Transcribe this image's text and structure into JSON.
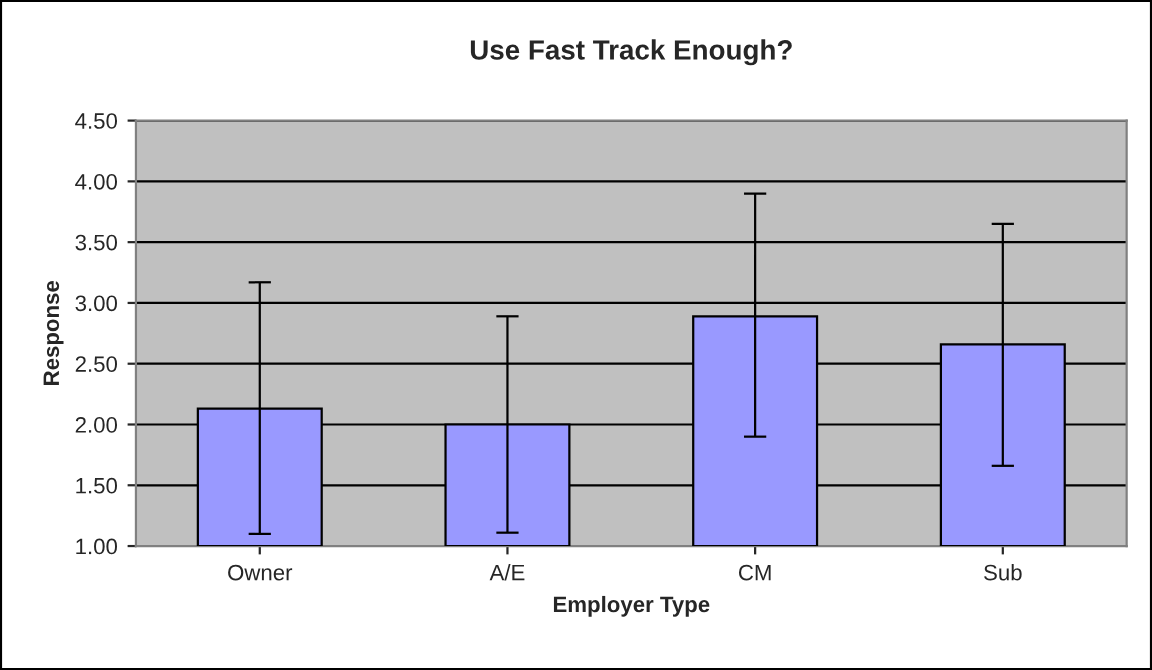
{
  "chart_data": {
    "type": "bar",
    "title": "Use Fast Track Enough?",
    "xlabel": "Employer Type",
    "ylabel": "Response",
    "categories": [
      "Owner",
      "A/E",
      "CM",
      "Sub"
    ],
    "values": [
      2.13,
      2.0,
      2.89,
      2.66
    ],
    "errors": [
      [
        1.1,
        3.17
      ],
      [
        1.11,
        2.89
      ],
      [
        1.9,
        3.9
      ],
      [
        1.66,
        3.65
      ]
    ],
    "color": "#9999ff",
    "ylim": [
      1,
      4.5
    ],
    "yticks": [
      {
        "value": 1,
        "label": "1.00"
      },
      {
        "value": 1.5,
        "label": "1.50"
      },
      {
        "value": 2,
        "label": "2.00"
      },
      {
        "value": 2.5,
        "label": "2.50"
      },
      {
        "value": 3,
        "label": "3.00"
      },
      {
        "value": 3.5,
        "label": "3.50"
      },
      {
        "value": 4,
        "label": "4.00"
      },
      {
        "value": 4.5,
        "label": "4.50"
      }
    ],
    "grid": "y",
    "legend": false
  }
}
